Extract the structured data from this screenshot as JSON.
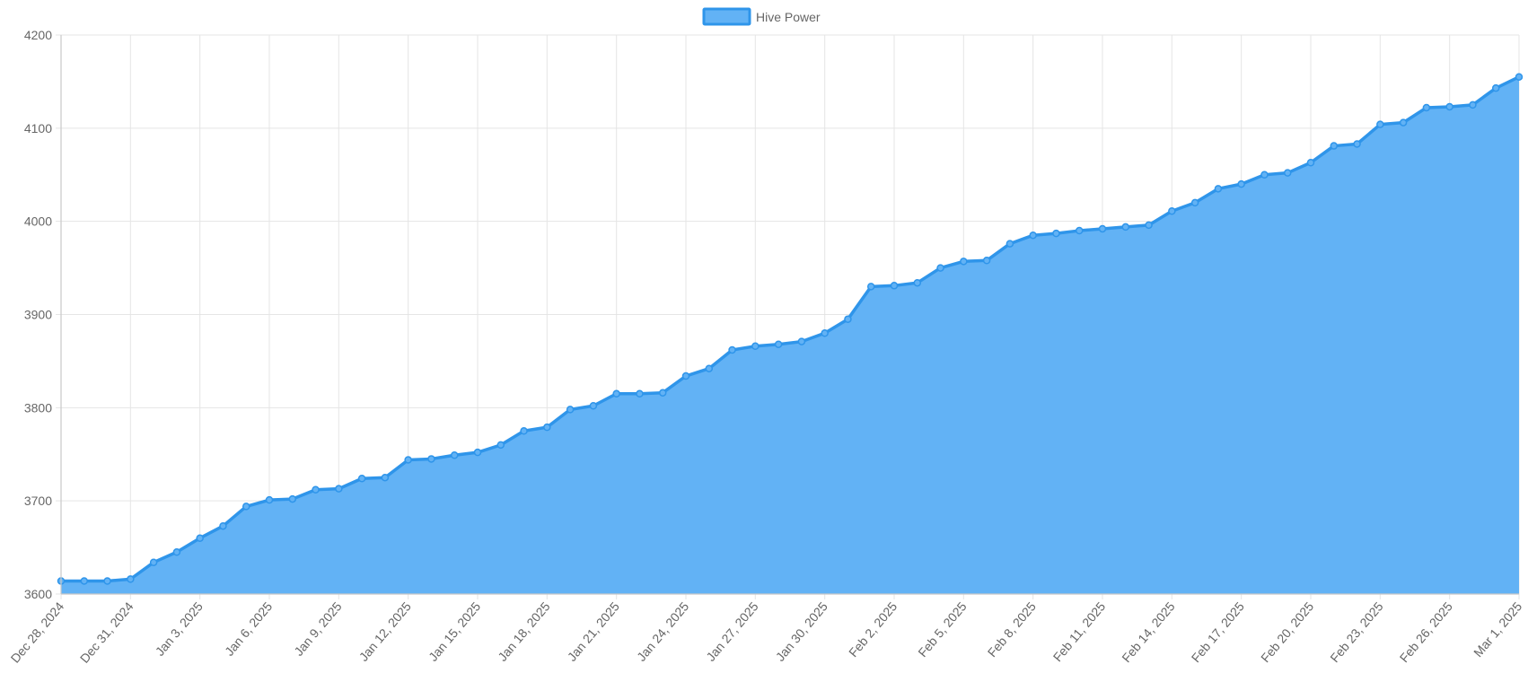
{
  "colors": {
    "line": "#2f95ea",
    "fill": "#62b2f5",
    "grid": "#e5e5e5",
    "axis": "#c8c8c8",
    "tick_text": "#666666"
  },
  "chart_data": {
    "type": "area",
    "legend": {
      "position": "top-center",
      "labels": [
        "Hive Power"
      ]
    },
    "grid": true,
    "xlabel": "",
    "ylabel": "",
    "ylim": [
      3600,
      4200
    ],
    "yticks": [
      3600,
      3700,
      3800,
      3900,
      4000,
      4100,
      4200
    ],
    "xlim": [
      "Dec 28, 2024",
      "Mar 1, 2025"
    ],
    "xtick_labels": [
      "Dec 28, 2024",
      "Dec 31, 2024",
      "Jan 3, 2025",
      "Jan 6, 2025",
      "Jan 9, 2025",
      "Jan 12, 2025",
      "Jan 15, 2025",
      "Jan 18, 2025",
      "Jan 21, 2025",
      "Jan 24, 2025",
      "Jan 27, 2025",
      "Jan 30, 2025",
      "Feb 2, 2025",
      "Feb 5, 2025",
      "Feb 8, 2025",
      "Feb 11, 2025",
      "Feb 14, 2025",
      "Feb 17, 2025",
      "Feb 20, 2025",
      "Feb 23, 2025",
      "Feb 26, 2025",
      "Mar 1, 2025"
    ],
    "series": [
      {
        "name": "Hive Power",
        "x": [
          "Dec 28, 2024",
          "Dec 29, 2024",
          "Dec 30, 2024",
          "Dec 31, 2024",
          "Jan 1, 2025",
          "Jan 2, 2025",
          "Jan 3, 2025",
          "Jan 4, 2025",
          "Jan 5, 2025",
          "Jan 6, 2025",
          "Jan 7, 2025",
          "Jan 8, 2025",
          "Jan 9, 2025",
          "Jan 10, 2025",
          "Jan 11, 2025",
          "Jan 12, 2025",
          "Jan 13, 2025",
          "Jan 14, 2025",
          "Jan 15, 2025",
          "Jan 16, 2025",
          "Jan 17, 2025",
          "Jan 18, 2025",
          "Jan 19, 2025",
          "Jan 20, 2025",
          "Jan 21, 2025",
          "Jan 22, 2025",
          "Jan 23, 2025",
          "Jan 24, 2025",
          "Jan 25, 2025",
          "Jan 26, 2025",
          "Jan 27, 2025",
          "Jan 28, 2025",
          "Jan 29, 2025",
          "Jan 30, 2025",
          "Jan 31, 2025",
          "Feb 1, 2025",
          "Feb 2, 2025",
          "Feb 3, 2025",
          "Feb 4, 2025",
          "Feb 5, 2025",
          "Feb 6, 2025",
          "Feb 7, 2025",
          "Feb 8, 2025",
          "Feb 9, 2025",
          "Feb 10, 2025",
          "Feb 11, 2025",
          "Feb 12, 2025",
          "Feb 13, 2025",
          "Feb 14, 2025",
          "Feb 15, 2025",
          "Feb 16, 2025",
          "Feb 17, 2025",
          "Feb 18, 2025",
          "Feb 19, 2025",
          "Feb 20, 2025",
          "Feb 21, 2025",
          "Feb 22, 2025",
          "Feb 23, 2025",
          "Feb 24, 2025",
          "Feb 25, 2025",
          "Feb 26, 2025",
          "Feb 27, 2025",
          "Feb 28, 2025",
          "Mar 1, 2025"
        ],
        "values": [
          3614,
          3614,
          3614,
          3616,
          3634,
          3645,
          3660,
          3673,
          3694,
          3701,
          3702,
          3712,
          3713,
          3724,
          3725,
          3744,
          3745,
          3749,
          3752,
          3760,
          3775,
          3779,
          3798,
          3802,
          3815,
          3815,
          3816,
          3834,
          3842,
          3862,
          3866,
          3868,
          3871,
          3880,
          3895,
          3930,
          3931,
          3934,
          3950,
          3957,
          3958,
          3976,
          3985,
          3987,
          3990,
          3992,
          3994,
          3996,
          4011,
          4020,
          4035,
          4040,
          4050,
          4052,
          4063,
          4081,
          4083,
          4104,
          4106,
          4122,
          4123,
          4125,
          4143,
          4155
        ]
      }
    ]
  }
}
